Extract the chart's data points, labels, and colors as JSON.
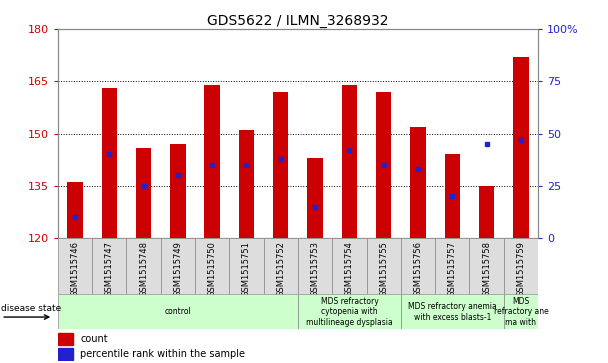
{
  "title": "GDS5622 / ILMN_3268932",
  "samples": [
    "GSM1515746",
    "GSM1515747",
    "GSM1515748",
    "GSM1515749",
    "GSM1515750",
    "GSM1515751",
    "GSM1515752",
    "GSM1515753",
    "GSM1515754",
    "GSM1515755",
    "GSM1515756",
    "GSM1515757",
    "GSM1515758",
    "GSM1515759"
  ],
  "counts": [
    136,
    163,
    146,
    147,
    164,
    151,
    162,
    143,
    164,
    162,
    152,
    144,
    135,
    172
  ],
  "percentile_ranks": [
    10,
    40,
    25,
    30,
    35,
    35,
    38,
    15,
    42,
    35,
    33,
    20,
    45,
    47
  ],
  "ylim_left": [
    120,
    180
  ],
  "ylim_right": [
    0,
    100
  ],
  "yticks_left": [
    120,
    135,
    150,
    165,
    180
  ],
  "yticks_right": [
    0,
    25,
    50,
    75,
    100
  ],
  "ytick_right_labels": [
    "0",
    "25",
    "50",
    "75",
    "100%"
  ],
  "bar_color": "#cc0000",
  "dot_color": "#2222cc",
  "bar_width": 0.45,
  "disease_groups": [
    {
      "label": "control",
      "start": 0,
      "end": 7,
      "color": "#ccffcc"
    },
    {
      "label": "MDS refractory\ncytopenia with\nmultilineage dysplasia",
      "start": 7,
      "end": 10,
      "color": "#ccffcc"
    },
    {
      "label": "MDS refractory anemia\nwith excess blasts-1",
      "start": 10,
      "end": 13,
      "color": "#ccffcc"
    },
    {
      "label": "MDS\nrefractory ane\nma with",
      "start": 13,
      "end": 14,
      "color": "#ccffcc"
    }
  ],
  "legend_count_color": "#cc0000",
  "legend_pct_color": "#2222cc",
  "bg_color": "#ffffff",
  "tick_label_color_left": "#cc0000",
  "tick_label_color_right": "#2222cc",
  "xtick_bg": "#dddddd",
  "border_color": "#888888",
  "grid_color": "#000000",
  "title_fontsize": 10,
  "tick_fontsize": 8,
  "label_fontsize": 7,
  "legend_fontsize": 7
}
